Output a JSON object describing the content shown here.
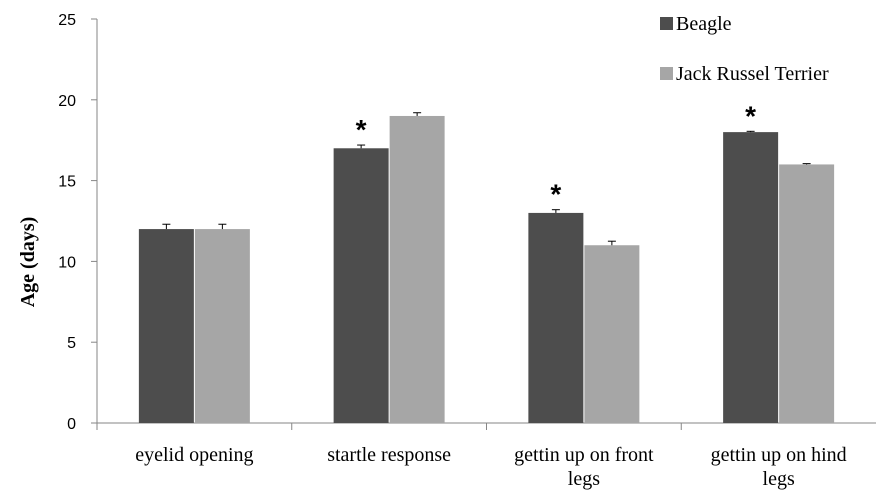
{
  "chart_data": {
    "type": "bar",
    "title": "",
    "xlabel": "",
    "ylabel": "Age (days)",
    "ylim": [
      0,
      25
    ],
    "yticks": [
      "0",
      "5",
      "10",
      "15",
      "20",
      "25"
    ],
    "categories": [
      [
        "eyelid opening"
      ],
      [
        "startle response"
      ],
      [
        "gettin up on front",
        "legs"
      ],
      [
        "gettin up on hind",
        "legs"
      ]
    ],
    "series": [
      {
        "name": "Beagle",
        "color": "#4d4d4d",
        "values": [
          12,
          17,
          13,
          18
        ],
        "errors": [
          0.3,
          0.2,
          0.2,
          0.05
        ]
      },
      {
        "name": "Jack Russel Terrier",
        "color": "#a6a6a6",
        "values": [
          12,
          19,
          11,
          16
        ],
        "errors": [
          0.3,
          0.2,
          0.25,
          0.05
        ]
      }
    ],
    "annotations": [
      {
        "category_index": 1,
        "series_index": 0,
        "text": "*"
      },
      {
        "category_index": 2,
        "series_index": 0,
        "text": "*"
      },
      {
        "category_index": 3,
        "series_index": 0,
        "text": "*"
      }
    ],
    "grid": false,
    "legend_position": "top-right"
  }
}
